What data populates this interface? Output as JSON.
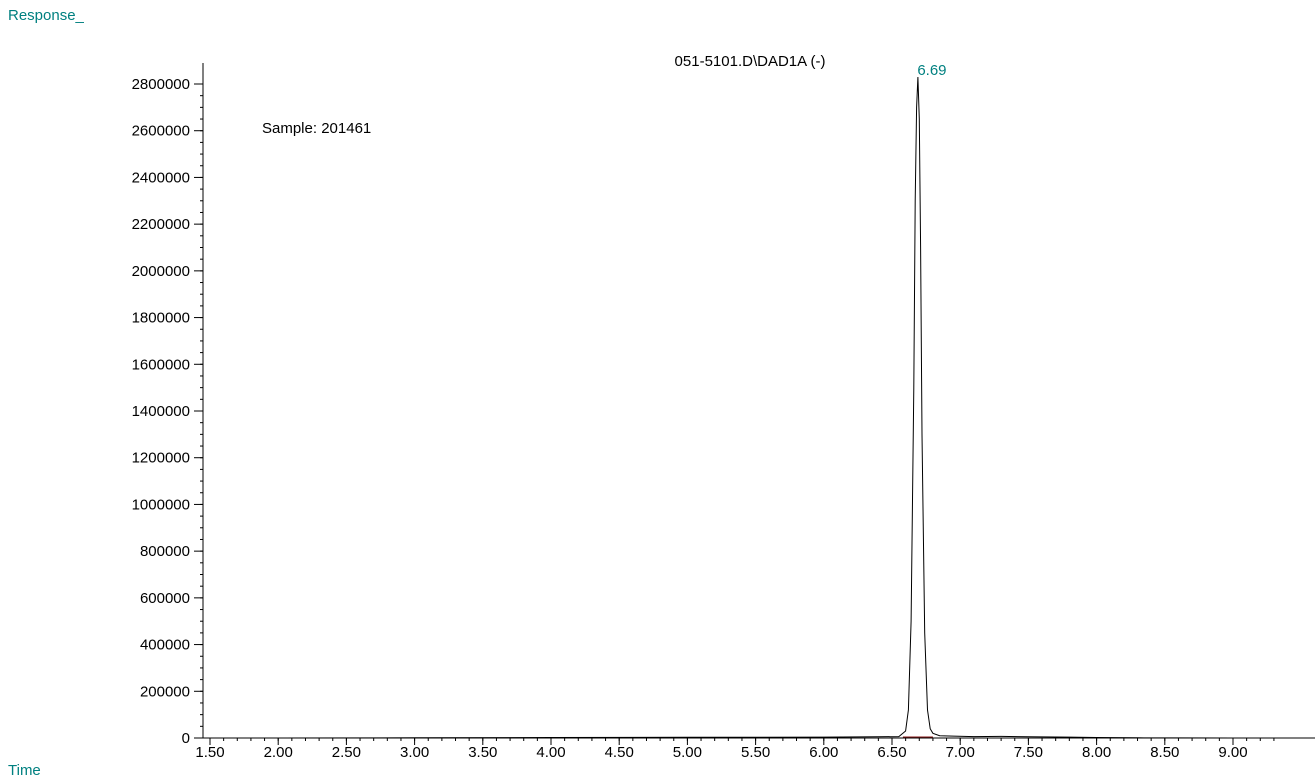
{
  "chart_data": {
    "type": "line",
    "title": "051-5101.D\\DAD1A (-)",
    "ylabel": "Response_",
    "xlabel": "Time",
    "annotation_sample": "Sample:  201461",
    "peak_label": "6.69",
    "xlim": [
      1.5,
      9.0
    ],
    "ylim": [
      0,
      2800000
    ],
    "x_ticks": [
      "1.50",
      "2.00",
      "2.50",
      "3.00",
      "3.50",
      "4.00",
      "4.50",
      "5.00",
      "5.50",
      "6.00",
      "6.50",
      "7.00",
      "7.50",
      "8.00",
      "8.50",
      "9.00"
    ],
    "x_tick_values": [
      1.5,
      2.0,
      2.5,
      3.0,
      3.5,
      4.0,
      4.5,
      5.0,
      5.5,
      6.0,
      6.5,
      7.0,
      7.5,
      8.0,
      8.5,
      9.0
    ],
    "y_ticks": [
      "0",
      "200000",
      "400000",
      "600000",
      "800000",
      "1000000",
      "1200000",
      "1400000",
      "1600000",
      "1800000",
      "2000000",
      "2200000",
      "2400000",
      "2600000",
      "2800000"
    ],
    "y_tick_values": [
      0,
      200000,
      400000,
      600000,
      800000,
      1000000,
      1200000,
      1400000,
      1600000,
      1800000,
      2000000,
      2200000,
      2400000,
      2600000,
      2800000
    ],
    "series": [
      {
        "x": [
          1.4,
          2.0,
          3.0,
          4.0,
          5.0,
          6.0,
          6.4,
          6.55,
          6.6,
          6.62,
          6.64,
          6.66,
          6.67,
          6.68,
          6.69,
          6.7,
          6.71,
          6.72,
          6.74,
          6.76,
          6.78,
          6.8,
          6.85,
          6.95,
          7.1,
          7.3,
          7.5,
          7.8,
          8.0,
          8.3,
          8.6,
          9.0,
          9.2
        ],
        "y": [
          0,
          0,
          1000,
          2000,
          3000,
          4000,
          5000,
          6000,
          30000,
          120000,
          500000,
          1500000,
          2300000,
          2700000,
          2830000,
          2650000,
          2100000,
          1300000,
          450000,
          120000,
          40000,
          20000,
          10000,
          8000,
          6000,
          7000,
          5000,
          4000,
          2000,
          1000,
          500,
          0,
          0
        ]
      }
    ],
    "colors": {
      "title": "#000000",
      "axis_label": "#008080",
      "peak_label": "#008080",
      "trace": "#000000",
      "baseline": "#8b1a1a"
    }
  }
}
